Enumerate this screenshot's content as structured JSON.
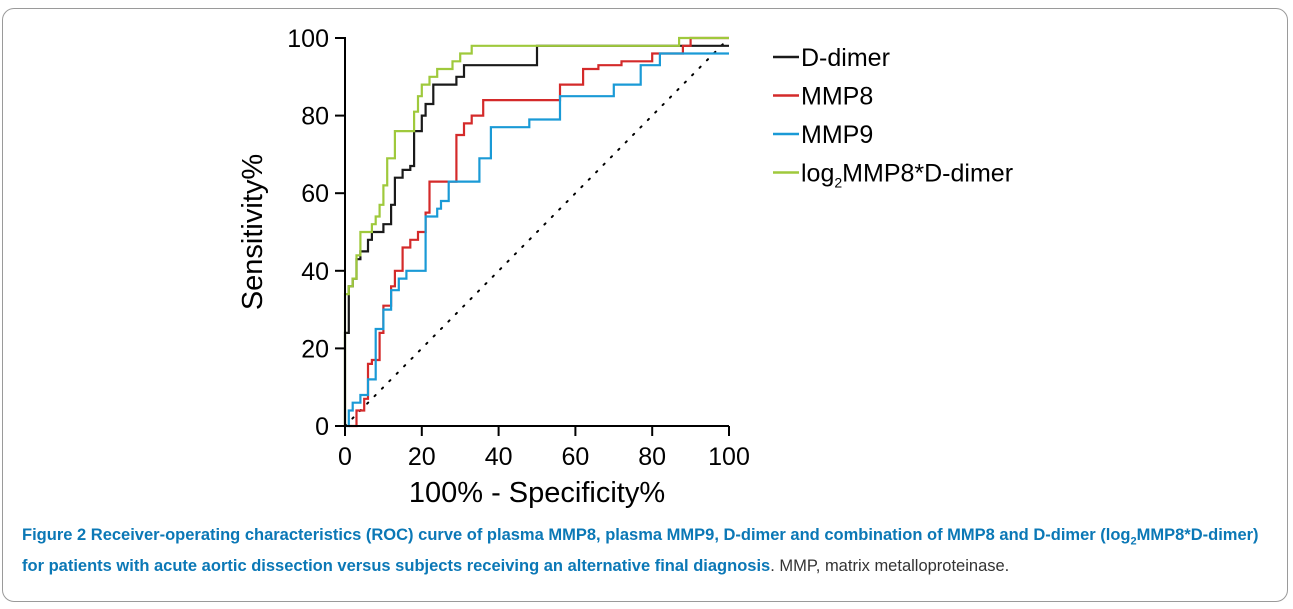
{
  "chart_data": {
    "type": "line",
    "xlabel": "100% - Specificity%",
    "ylabel": "Sensitivity%",
    "xlim": [
      0,
      100
    ],
    "ylim": [
      0,
      100
    ],
    "xticks": [
      "0",
      "20",
      "40",
      "60",
      "80",
      "100"
    ],
    "yticks": [
      "0",
      "20",
      "40",
      "60",
      "80",
      "100"
    ],
    "grid": false,
    "legend_position": "right",
    "reference_line": {
      "x": [
        0,
        100
      ],
      "y": [
        0,
        100
      ],
      "style": "dotted",
      "color": "#000000"
    },
    "series": [
      {
        "name": "D-dimer",
        "color": "#1a1a1a",
        "x": [
          0,
          0,
          1,
          1,
          2,
          2,
          3,
          3,
          4,
          4,
          6,
          6,
          7,
          7,
          10,
          10,
          12,
          12,
          13,
          13,
          15,
          15,
          17,
          17,
          18,
          18,
          20,
          20,
          21,
          21,
          23,
          23,
          29,
          29,
          31,
          31,
          33,
          33,
          50,
          50,
          97,
          100
        ],
        "y": [
          0,
          24,
          24,
          36,
          36,
          38,
          38,
          43,
          43,
          45,
          45,
          48,
          48,
          50,
          50,
          52,
          52,
          57,
          57,
          64,
          64,
          66,
          66,
          67,
          67,
          76,
          76,
          80,
          80,
          83,
          83,
          88,
          88,
          90,
          90,
          93,
          93,
          93,
          93,
          98,
          98,
          98
        ]
      },
      {
        "name": "MMP8",
        "color": "#d42a2a",
        "x": [
          1,
          3,
          3,
          5,
          5,
          6,
          6,
          7,
          7,
          9,
          9,
          10,
          10,
          12,
          12,
          13,
          13,
          15,
          15,
          17,
          17,
          19,
          19,
          21,
          21,
          22,
          22,
          29,
          29,
          31,
          31,
          33,
          33,
          36,
          36,
          56,
          56,
          62,
          62,
          66,
          66,
          72,
          72,
          80,
          80,
          88,
          88,
          90,
          90,
          100
        ],
        "y": [
          0,
          0,
          4,
          4,
          7,
          7,
          16,
          16,
          17,
          17,
          24,
          24,
          31,
          31,
          36,
          36,
          40,
          40,
          46,
          46,
          48,
          48,
          50,
          50,
          55,
          55,
          63,
          63,
          75,
          75,
          78,
          78,
          80,
          80,
          84,
          84,
          88,
          88,
          92,
          92,
          93,
          93,
          94,
          94,
          96,
          96,
          98,
          98,
          100,
          100
        ]
      },
      {
        "name": "MMP9",
        "color": "#1a9ad6",
        "x": [
          0,
          1,
          1,
          2,
          2,
          4,
          4,
          6,
          6,
          8,
          8,
          10,
          10,
          12,
          12,
          14,
          14,
          16,
          16,
          21,
          21,
          24,
          24,
          25,
          25,
          27,
          27,
          35,
          35,
          38,
          38,
          48,
          48,
          56,
          56,
          70,
          70,
          77,
          77,
          82,
          82,
          100
        ],
        "y": [
          0,
          0,
          4,
          4,
          6,
          6,
          8,
          8,
          12,
          12,
          25,
          25,
          30,
          30,
          35,
          35,
          38,
          38,
          40,
          40,
          54,
          54,
          56,
          56,
          58,
          58,
          63,
          63,
          69,
          69,
          77,
          77,
          79,
          79,
          85,
          85,
          88,
          88,
          93,
          93,
          96,
          96
        ]
      },
      {
        "name": "log₂MMP8*D-dimer",
        "color": "#9fc93c",
        "x": [
          0,
          0,
          1,
          1,
          2,
          2,
          3,
          3,
          4,
          4,
          5,
          5,
          7,
          7,
          8,
          8,
          9,
          9,
          10,
          10,
          11,
          11,
          13,
          13,
          18,
          18,
          19,
          19,
          20,
          20,
          22,
          22,
          24,
          24,
          28,
          28,
          30,
          30,
          33,
          33,
          38,
          38,
          87,
          87,
          100
        ],
        "y": [
          0,
          34,
          34,
          36,
          36,
          38,
          38,
          44,
          44,
          50,
          50,
          50,
          50,
          52,
          52,
          54,
          54,
          57,
          57,
          62,
          62,
          69,
          69,
          76,
          76,
          81,
          81,
          85,
          85,
          88,
          88,
          90,
          90,
          92,
          92,
          94,
          94,
          96,
          96,
          98,
          98,
          98,
          98,
          100,
          100
        ]
      }
    ]
  },
  "legend": {
    "items": [
      {
        "label": "D-dimer",
        "color": "#1a1a1a"
      },
      {
        "label": "MMP8",
        "color": "#d42a2a"
      },
      {
        "label": "MMP9",
        "color": "#1a9ad6"
      },
      {
        "label_prefix": "log",
        "label_sub": "2",
        "label_suffix": "MMP8*D-dimer",
        "color": "#9fc93c"
      }
    ]
  },
  "caption": {
    "figure_label": "Figure 2",
    "bold_part1": " Receiver-operating characteristics (ROC) curve of plasma MMP8, plasma MMP9, D-dimer and combination of MMP8 and D-dimer (log",
    "bold_sub": "2",
    "bold_part2": "MMP8*D-dimer) for patients with acute aortic dissection versus subjects receiving an alternative final diagnosis",
    "normal_part": ". MMP, matrix metalloproteinase."
  }
}
